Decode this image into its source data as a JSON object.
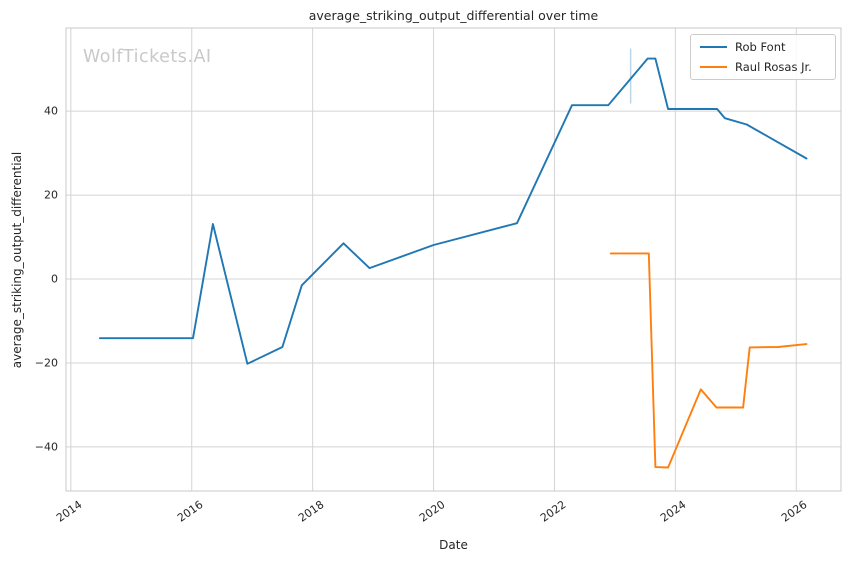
{
  "title": "average_striking_output_differential over time",
  "watermark": "WolfTickets.AI",
  "legend": {
    "items": [
      {
        "label": "Rob Font",
        "color": "#1f77b4"
      },
      {
        "label": "Raul Rosas Jr.",
        "color": "#ff7f0e"
      }
    ]
  },
  "colors": {
    "grid": "#d4d4d4",
    "spine": "#c9c9c9",
    "background": "#ffffff",
    "blue_series": "#1f77b4",
    "orange_series": "#ff7f0e",
    "marker_line": "#b9d6ea",
    "watermark": "#c9c9c9"
  },
  "chart_data": {
    "type": "line",
    "title": "average_striking_output_differential over time",
    "xlabel": "Date",
    "ylabel": "average_striking_output_differential",
    "grid": true,
    "legend_position": "upper right",
    "xlim": [
      2013.92,
      2026.74
    ],
    "ylim": [
      -50.5,
      59.8
    ],
    "xticks": [
      2014,
      2016,
      2018,
      2020,
      2022,
      2024,
      2026
    ],
    "xtick_labels": [
      "2014",
      "2016",
      "2018",
      "2020",
      "2022",
      "2024",
      "2026"
    ],
    "yticks": [
      -40,
      -20,
      0,
      20,
      40
    ],
    "ytick_labels": [
      "−40",
      "−20",
      "0",
      "20",
      "40"
    ],
    "series": [
      {
        "name": "Rob Font",
        "color": "#1f77b4",
        "x": [
          2014.48,
          2016.02,
          2016.35,
          2016.92,
          2017.5,
          2017.82,
          2018.51,
          2018.94,
          2020.0,
          2021.38,
          2022.29,
          2022.89,
          2023.54,
          2023.67,
          2023.88,
          2024.69,
          2024.82,
          2025.18,
          2026.17
        ],
        "y": [
          -14.1,
          -14.1,
          13.1,
          -20.2,
          -16.2,
          -1.5,
          8.5,
          2.6,
          8.1,
          13.3,
          41.4,
          41.4,
          52.5,
          52.5,
          40.5,
          40.5,
          38.3,
          36.8,
          28.7
        ]
      },
      {
        "name": "Raul Rosas Jr.",
        "color": "#ff7f0e",
        "x": [
          2022.93,
          2023.56,
          2023.67,
          2023.88,
          2024.42,
          2024.68,
          2025.12,
          2025.23,
          2025.7,
          2026.17
        ],
        "y": [
          6.1,
          6.1,
          -44.8,
          -44.9,
          -26.3,
          -30.6,
          -30.6,
          -16.3,
          -16.2,
          -15.5
        ]
      }
    ],
    "annotations": [
      {
        "type": "vline",
        "x": 2023.26,
        "y_from": 41.8,
        "y_to": 54.9,
        "color": "#b9d6ea"
      }
    ]
  }
}
